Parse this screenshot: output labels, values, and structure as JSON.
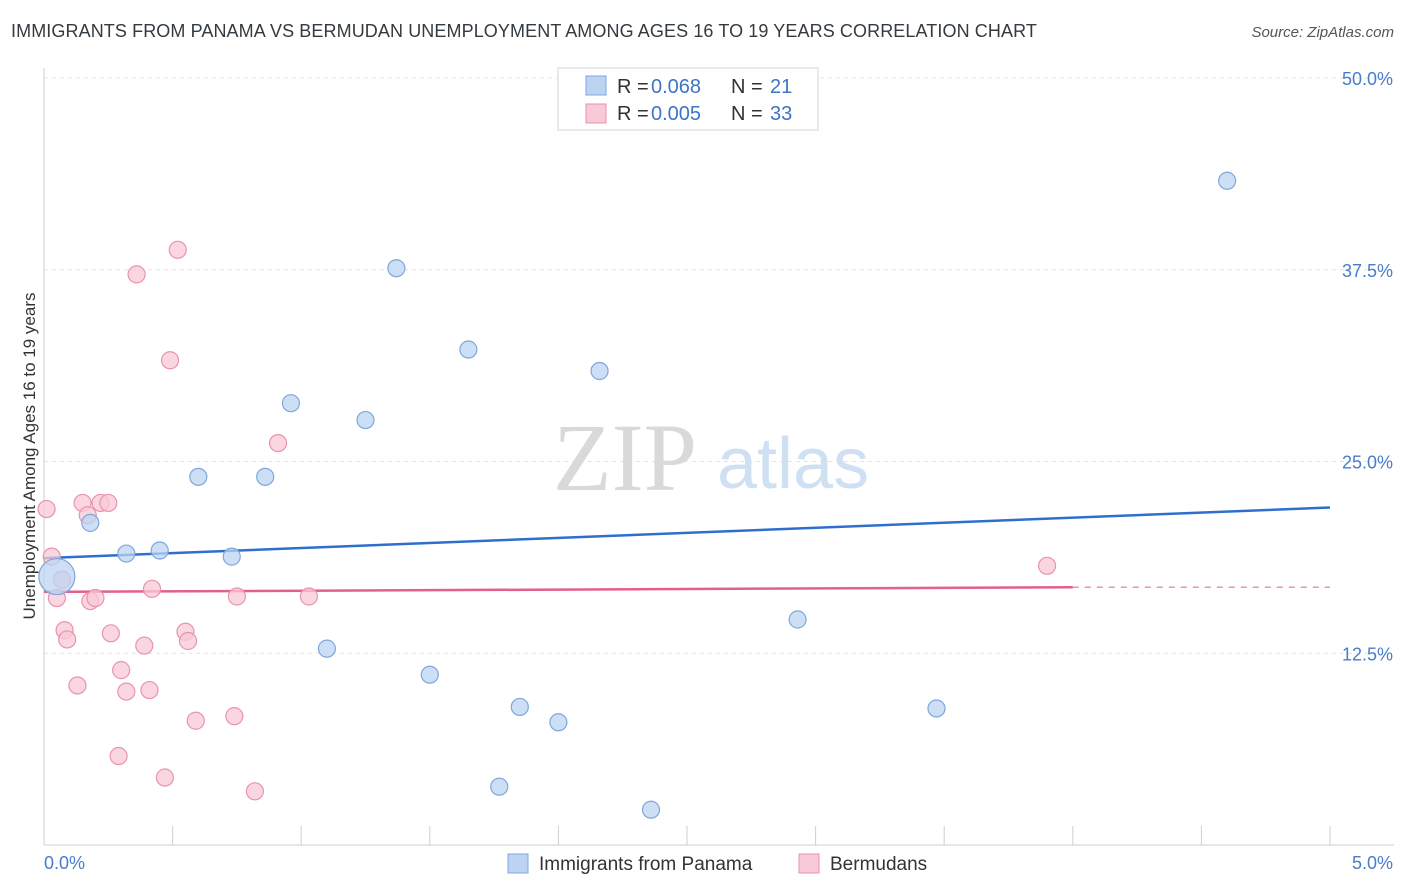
{
  "title": "IMMIGRANTS FROM PANAMA VS BERMUDAN UNEMPLOYMENT AMONG AGES 16 TO 19 YEARS CORRELATION CHART",
  "source": "Source: ZipAtlas.com",
  "watermark": {
    "zip": "ZIP",
    "atlas": "atlas"
  },
  "legend_top": {
    "r_label": "R =",
    "n_label": "N =",
    "entries": [
      {
        "r": "0.068",
        "n": "21"
      },
      {
        "r": "0.005",
        "n": "33"
      }
    ]
  },
  "legend_bottom": [
    "Immigrants from Panama",
    "Bermudans"
  ],
  "colors": {
    "blue_fill": "#bcd4f2",
    "blue_stroke": "#7fa6dc",
    "blue_line": "#2f6fcb",
    "pink_fill": "#f8c9d6",
    "pink_stroke": "#e993ad",
    "pink_line": "#e2608a",
    "tick_text": "#4a7cc9",
    "grid": "#e4e4e4"
  },
  "chart_data": {
    "type": "scatter",
    "title": "IMMIGRANTS FROM PANAMA VS BERMUDAN UNEMPLOYMENT AMONG AGES 16 TO 19 YEARS CORRELATION CHART",
    "xlabel": "",
    "ylabel": "Unemployment Among Ages 16 to 19 years",
    "xlim": [
      0,
      5
    ],
    "ylim": [
      0,
      50
    ],
    "x_tick_labels": [
      "0.0%",
      "5.0%"
    ],
    "y_ticks": [
      12.5,
      25.0,
      37.5,
      50.0
    ],
    "y_tick_labels": [
      "12.5%",
      "25.0%",
      "37.5%",
      "50.0%"
    ],
    "grid": true,
    "legend_position": "top-center",
    "series": [
      {
        "name": "Immigrants from Panama",
        "color": "#bcd4f2",
        "trend": {
          "x": [
            0,
            5
          ],
          "y": [
            18.7,
            22.0
          ]
        },
        "points": [
          {
            "x": 0.05,
            "y": 17.5,
            "size": "large"
          },
          {
            "x": 0.18,
            "y": 21.0
          },
          {
            "x": 0.32,
            "y": 19.0
          },
          {
            "x": 0.45,
            "y": 19.2
          },
          {
            "x": 0.6,
            "y": 24.0
          },
          {
            "x": 0.73,
            "y": 18.8
          },
          {
            "x": 0.86,
            "y": 24.0
          },
          {
            "x": 0.96,
            "y": 28.8
          },
          {
            "x": 1.1,
            "y": 12.8
          },
          {
            "x": 1.25,
            "y": 27.7
          },
          {
            "x": 1.37,
            "y": 37.6
          },
          {
            "x": 1.5,
            "y": 11.1
          },
          {
            "x": 1.65,
            "y": 32.3
          },
          {
            "x": 1.77,
            "y": 3.8
          },
          {
            "x": 1.85,
            "y": 9.0
          },
          {
            "x": 2.0,
            "y": 8.0
          },
          {
            "x": 2.16,
            "y": 30.9
          },
          {
            "x": 2.36,
            "y": 2.3
          },
          {
            "x": 2.93,
            "y": 14.7
          },
          {
            "x": 3.47,
            "y": 8.9
          },
          {
            "x": 4.6,
            "y": 43.3
          }
        ]
      },
      {
        "name": "Bermudans",
        "color": "#f8c9d6",
        "trend": {
          "x": [
            0,
            4.0
          ],
          "y": [
            16.5,
            16.8
          ],
          "dashed_to": [
            5,
            16.8
          ]
        },
        "points": [
          {
            "x": 0.01,
            "y": 21.9
          },
          {
            "x": 0.03,
            "y": 18.8
          },
          {
            "x": 0.05,
            "y": 16.1
          },
          {
            "x": 0.07,
            "y": 17.3
          },
          {
            "x": 0.08,
            "y": 14.0
          },
          {
            "x": 0.09,
            "y": 13.4
          },
          {
            "x": 0.13,
            "y": 10.4
          },
          {
            "x": 0.15,
            "y": 22.3
          },
          {
            "x": 0.17,
            "y": 21.5
          },
          {
            "x": 0.18,
            "y": 15.9
          },
          {
            "x": 0.2,
            "y": 16.1
          },
          {
            "x": 0.22,
            "y": 22.3
          },
          {
            "x": 0.25,
            "y": 22.3
          },
          {
            "x": 0.26,
            "y": 13.8
          },
          {
            "x": 0.29,
            "y": 5.8
          },
          {
            "x": 0.3,
            "y": 11.4
          },
          {
            "x": 0.32,
            "y": 10.0
          },
          {
            "x": 0.36,
            "y": 37.2
          },
          {
            "x": 0.39,
            "y": 13.0
          },
          {
            "x": 0.41,
            "y": 10.1
          },
          {
            "x": 0.42,
            "y": 16.7
          },
          {
            "x": 0.47,
            "y": 4.4
          },
          {
            "x": 0.49,
            "y": 31.6
          },
          {
            "x": 0.52,
            "y": 38.8
          },
          {
            "x": 0.55,
            "y": 13.9
          },
          {
            "x": 0.56,
            "y": 13.3
          },
          {
            "x": 0.59,
            "y": 8.1
          },
          {
            "x": 0.74,
            "y": 8.4
          },
          {
            "x": 0.75,
            "y": 16.2
          },
          {
            "x": 0.82,
            "y": 3.5
          },
          {
            "x": 0.91,
            "y": 26.2
          },
          {
            "x": 1.03,
            "y": 16.2
          },
          {
            "x": 3.9,
            "y": 18.2
          }
        ]
      }
    ]
  }
}
